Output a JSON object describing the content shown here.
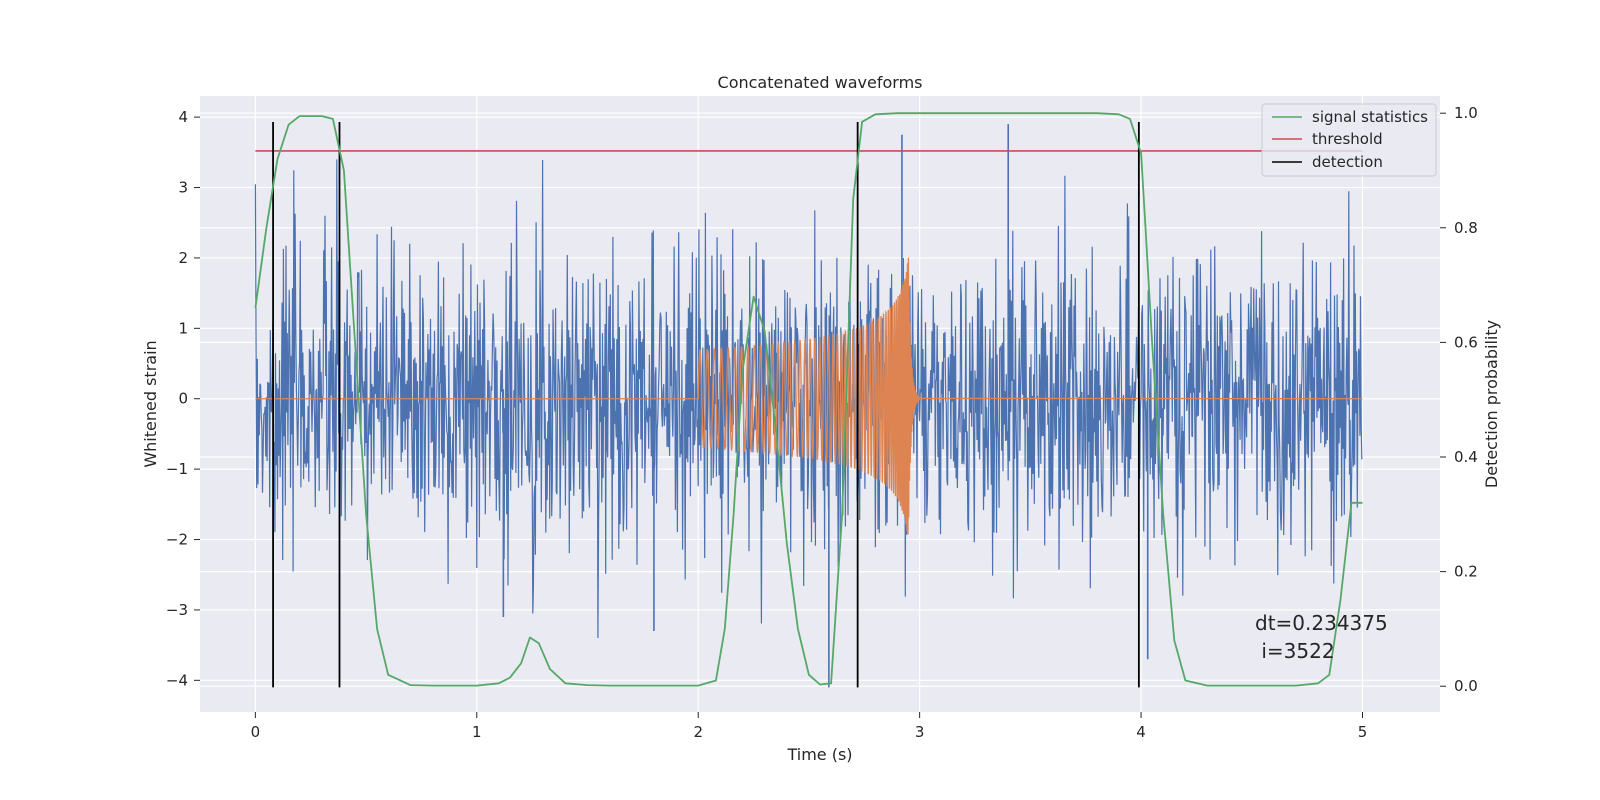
{
  "chart_data": {
    "type": "line",
    "title": "Concatenated waveforms",
    "xlabel": "Time (s)",
    "ylabel": "Whitened strain",
    "ylabel_right": "Detection probability",
    "xlim": [
      -0.25,
      5.35
    ],
    "ylim": [
      -4.45,
      4.3
    ],
    "ylim_right": [
      -0.045,
      1.03
    ],
    "xticks": [
      "0",
      "1",
      "2",
      "3",
      "4",
      "5"
    ],
    "yticks": [
      "4",
      "3",
      "2",
      "1",
      "0",
      "−1",
      "−2",
      "−3",
      "−4"
    ],
    "yticks_right": [
      "1.0",
      "0.8",
      "0.6",
      "0.4",
      "0.2",
      "0.0"
    ],
    "grid": true,
    "legend_placement": "top-right",
    "legend": [
      {
        "label": "signal statistics",
        "color": "#55a868"
      },
      {
        "label": "threshold",
        "color": "#c44e52"
      },
      {
        "label": "detection",
        "color": "#000000"
      }
    ],
    "annotation": {
      "line1": "dt=0.234375",
      "line2": " i=3522"
    },
    "strain_noise": {
      "color": "#4c72b0",
      "x_range": [
        0,
        5
      ],
      "typical_amplitude": 2.2,
      "peaks": [
        {
          "x": 2.92,
          "y": 3.75
        },
        {
          "x": 3.4,
          "y": 3.9
        },
        {
          "x": 1.12,
          "y": -3.1
        },
        {
          "x": 1.8,
          "y": -3.3
        },
        {
          "x": 2.59,
          "y": -4.1
        },
        {
          "x": 4.03,
          "y": -3.7
        }
      ]
    },
    "template_waveform": {
      "color": "#dd8452",
      "start": 2.0,
      "merger": 2.95,
      "end": 3.0,
      "peak_amplitude": 2.05,
      "min_amplitude": -2.8
    },
    "threshold": {
      "x": [
        0,
        5
      ],
      "y": 3.52,
      "color": "#c44e52"
    },
    "detections": [
      0.08,
      0.38,
      2.72,
      3.99
    ],
    "detection_ymin": -4.1,
    "detection_ymax": 3.93,
    "signal_statistics": {
      "color": "#55a868",
      "x": [
        0.0,
        0.05,
        0.1,
        0.15,
        0.2,
        0.25,
        0.3,
        0.35,
        0.4,
        0.45,
        0.5,
        0.55,
        0.6,
        0.7,
        0.8,
        0.9,
        1.0,
        1.1,
        1.15,
        1.2,
        1.24,
        1.28,
        1.33,
        1.4,
        1.5,
        1.6,
        1.8,
        2.0,
        2.08,
        2.12,
        2.16,
        2.2,
        2.25,
        2.3,
        2.35,
        2.4,
        2.45,
        2.5,
        2.55,
        2.6,
        2.65,
        2.7,
        2.74,
        2.8,
        2.9,
        3.0,
        3.2,
        3.4,
        3.6,
        3.8,
        3.9,
        3.95,
        4.0,
        4.02,
        4.05,
        4.1,
        4.15,
        4.2,
        4.3,
        4.5,
        4.7,
        4.8,
        4.85,
        4.9,
        4.95,
        5.0
      ],
      "y": [
        0.66,
        0.8,
        0.92,
        0.98,
        0.995,
        0.995,
        0.995,
        0.99,
        0.9,
        0.6,
        0.3,
        0.1,
        0.02,
        0.002,
        0.001,
        0.001,
        0.001,
        0.005,
        0.015,
        0.04,
        0.085,
        0.075,
        0.03,
        0.005,
        0.002,
        0.001,
        0.001,
        0.001,
        0.01,
        0.1,
        0.3,
        0.55,
        0.68,
        0.62,
        0.45,
        0.25,
        0.1,
        0.02,
        0.003,
        0.005,
        0.3,
        0.85,
        0.985,
        0.998,
        1.0,
        1.0,
        1.0,
        1.0,
        1.0,
        1.0,
        0.998,
        0.99,
        0.93,
        0.8,
        0.6,
        0.3,
        0.08,
        0.01,
        0.001,
        0.001,
        0.001,
        0.005,
        0.02,
        0.15,
        0.32,
        0.32
      ]
    }
  }
}
